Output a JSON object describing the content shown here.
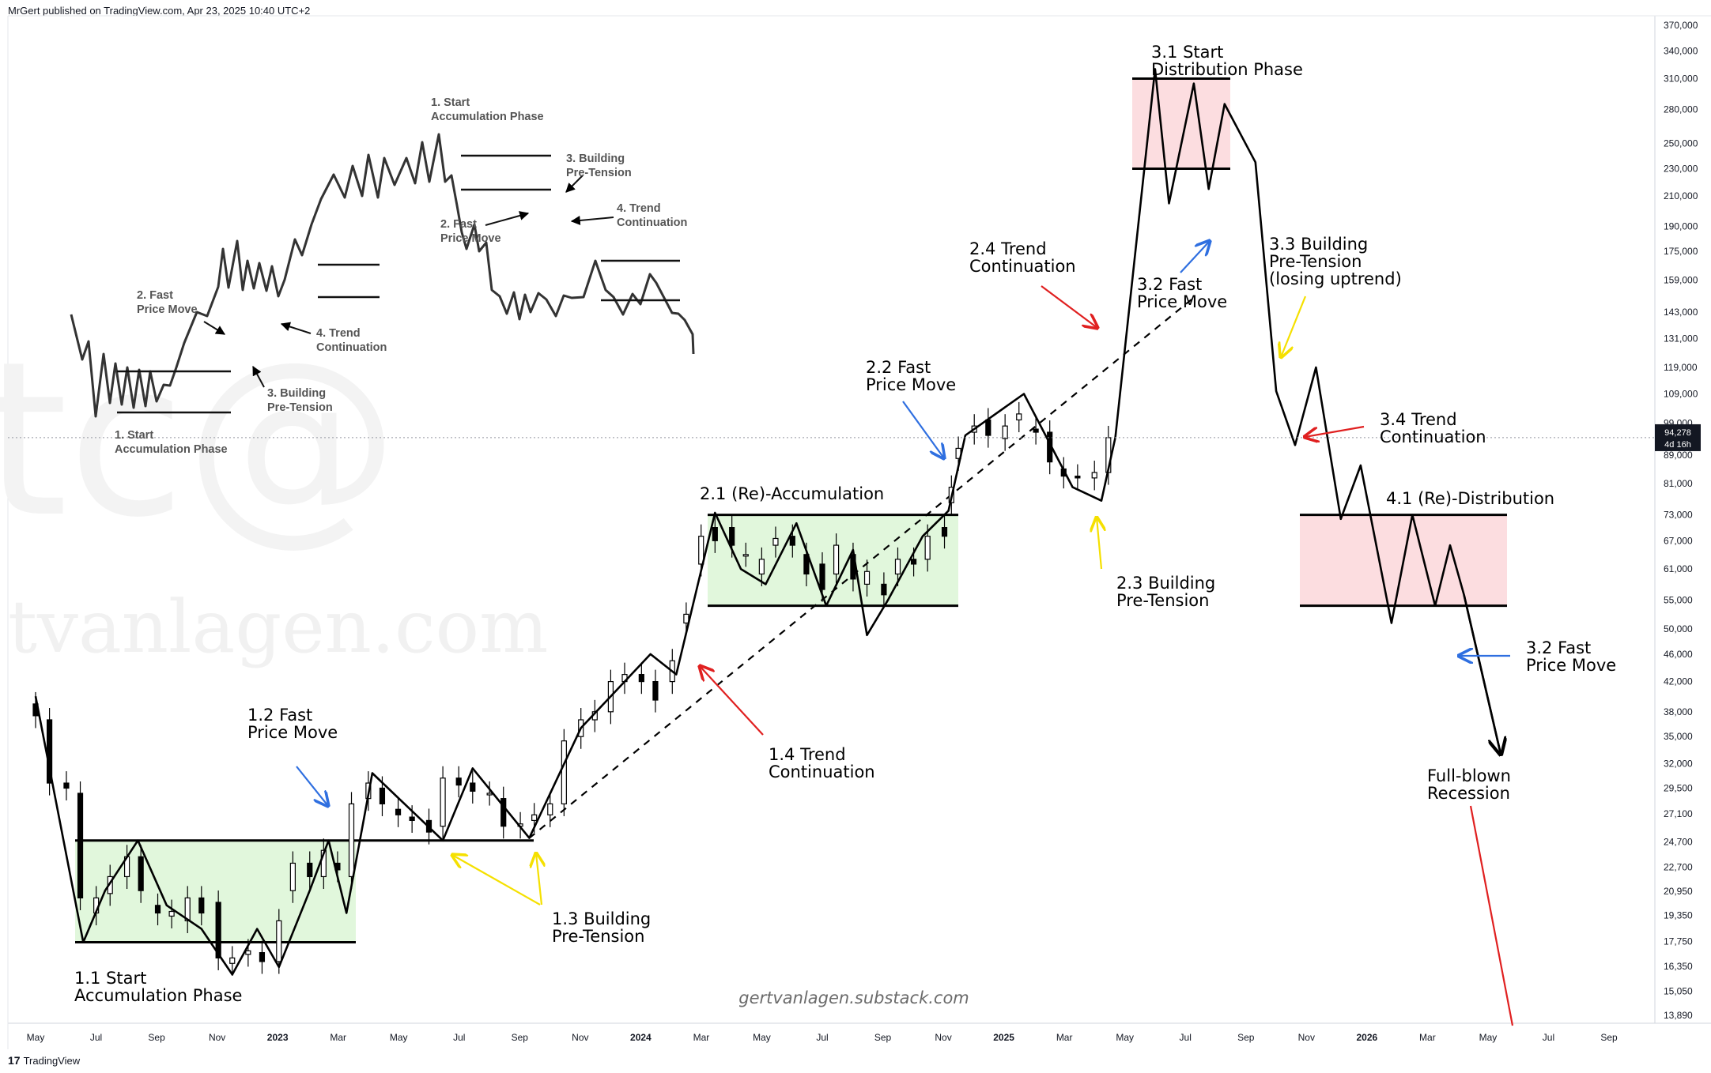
{
  "header": {
    "publisher": "MrGert published on TradingView.com, Apr 23, 2025 10:40 UTC+2"
  },
  "footer": {
    "logo_glyph": "17",
    "brand": "TradingView"
  },
  "watermark": {
    "site": "tvanlagen.com",
    "fragment": "tc@"
  },
  "price_tag": {
    "price": "94,278",
    "countdown": "4d 16h"
  },
  "colors": {
    "accumulation": "#e1f7dc",
    "distribution": "#fcdde0",
    "arrow_red": "#e02020",
    "arrow_blue": "#2f6fe0",
    "arrow_yellow": "#f5e000",
    "ink": "#000000",
    "axis_text": "#131722"
  },
  "chart_data": {
    "type": "line",
    "title": "",
    "xlabel": "",
    "ylabel": "",
    "y_scale": "log",
    "x_range": [
      "2022-05",
      "2026-09"
    ],
    "ylim": [
      13000,
      375000
    ],
    "x_ticks": [
      "May",
      "Jul",
      "Sep",
      "Nov",
      "2023",
      "Mar",
      "May",
      "Jul",
      "Sep",
      "Nov",
      "2024",
      "Mar",
      "May",
      "Jul",
      "Sep",
      "Nov",
      "2025",
      "Mar",
      "May",
      "Jul",
      "Sep",
      "Nov",
      "2026",
      "Mar",
      "May",
      "Jul",
      "Sep"
    ],
    "y_ticks": [
      "370,000",
      "340,000",
      "310,000",
      "280,000",
      "250,000",
      "230,000",
      "210,000",
      "190,000",
      "175,000",
      "159,000",
      "143,000",
      "131,000",
      "119,000",
      "109,000",
      "99,000",
      "89,000",
      "81,000",
      "73,000",
      "67,000",
      "61,000",
      "55,000",
      "50,000",
      "46,000",
      "42,000",
      "38,000",
      "35,000",
      "32,000",
      "29,500",
      "27,100",
      "24,700",
      "22,700",
      "20,950",
      "19,350",
      "17,750",
      "16,350",
      "15,050",
      "13,890"
    ],
    "current_price": 94278,
    "zones": [
      {
        "kind": "accumulation",
        "low": 17700,
        "high": 24800
      },
      {
        "kind": "accumulation",
        "low": 54000,
        "high": 73000
      },
      {
        "kind": "distribution",
        "low": 230000,
        "high": 310000
      },
      {
        "kind": "distribution",
        "low": 54000,
        "high": 73000
      }
    ],
    "annotations": [
      {
        "id": "a11",
        "line1": "1.1 Start",
        "line2": "Accumulation Phase"
      },
      {
        "id": "a12",
        "line1": "1.2 Fast",
        "line2": "Price Move"
      },
      {
        "id": "a13",
        "line1": "1.3 Building",
        "line2": "Pre-Tension"
      },
      {
        "id": "a14",
        "line1": "1.4 Trend",
        "line2": "Continuation"
      },
      {
        "id": "a21",
        "line1": "2.1 (Re)-Accumulation",
        "line2": ""
      },
      {
        "id": "a22",
        "line1": "2.2 Fast",
        "line2": "Price Move"
      },
      {
        "id": "a23",
        "line1": "2.3 Building",
        "line2": "Pre-Tension"
      },
      {
        "id": "a24",
        "line1": "2.4 Trend",
        "line2": "Continuation"
      },
      {
        "id": "a31",
        "line1": "3.1 Start",
        "line2": "Distribution Phase"
      },
      {
        "id": "a32a",
        "line1": "3.2 Fast",
        "line2": "Price Move"
      },
      {
        "id": "a33",
        "line1": "3.3 Building",
        "line2": "Pre-Tension",
        "line3": "(losing uptrend)"
      },
      {
        "id": "a34",
        "line1": "3.4 Trend",
        "line2": "Continuation"
      },
      {
        "id": "a41",
        "line1": "4.1 (Re)-Distribution",
        "line2": ""
      },
      {
        "id": "a32b",
        "line1": "3.2 Fast",
        "line2": "Price Move"
      },
      {
        "id": "a_rec",
        "line1": "Full-blown",
        "line2": "Recession"
      }
    ],
    "credit": "gertvanlagen.substack.com",
    "inset_labels": [
      {
        "id": "i1",
        "line1": "1. Start",
        "line2": "Accumulation Phase"
      },
      {
        "id": "i2",
        "line1": "2. Fast",
        "line2": "Price Move"
      },
      {
        "id": "i3",
        "line1": "3. Building",
        "line2": "Pre-Tension"
      },
      {
        "id": "i4",
        "line1": "4. Trend",
        "line2": "Continuation"
      },
      {
        "id": "j1",
        "line1": "1. Start",
        "line2": "Accumulation Phase"
      },
      {
        "id": "j2",
        "line1": "2. Fast",
        "line2": "Price Move"
      },
      {
        "id": "j3",
        "line1": "3. Building",
        "line2": "Pre-Tension"
      },
      {
        "id": "j4",
        "line1": "4. Trend",
        "line2": "Continuation"
      }
    ],
    "path_main": [
      [
        "2022-05-01",
        40000
      ],
      [
        "2022-06-18",
        17700
      ],
      [
        "2022-07-10",
        21000
      ],
      [
        "2022-08-12",
        24800
      ],
      [
        "2022-09-10",
        20000
      ],
      [
        "2022-10-15",
        18500
      ],
      [
        "2022-11-15",
        15900
      ],
      [
        "2022-12-10",
        18500
      ],
      [
        "2023-01-01",
        16300
      ],
      [
        "2023-02-01",
        21000
      ],
      [
        "2023-02-20",
        24800
      ],
      [
        "2023-03-10",
        19500
      ],
      [
        "2023-04-05",
        31000
      ],
      [
        "2023-06-15",
        24800
      ],
      [
        "2023-07-15",
        31500
      ],
      [
        "2023-09-10",
        25000
      ],
      [
        "2023-11-01",
        36000
      ],
      [
        "2024-01-10",
        46000
      ],
      [
        "2024-02-05",
        43000
      ],
      [
        "2024-03-15",
        73500
      ],
      [
        "2024-04-10",
        61000
      ],
      [
        "2024-05-05",
        58000
      ],
      [
        "2024-06-05",
        71000
      ],
      [
        "2024-07-05",
        54000
      ],
      [
        "2024-08-01",
        65000
      ],
      [
        "2024-08-15",
        49000
      ],
      [
        "2024-09-05",
        55000
      ],
      [
        "2024-10-10",
        68000
      ],
      [
        "2024-11-05",
        74000
      ],
      [
        "2024-11-22",
        95000
      ],
      [
        "2025-01-20",
        109000
      ],
      [
        "2025-03-10",
        80000
      ],
      [
        "2025-04-08",
        76500
      ],
      [
        "2025-04-22",
        94278
      ],
      [
        "2025-06-01",
        320000
      ],
      [
        "2025-06-15",
        205000
      ],
      [
        "2025-07-10",
        305000
      ],
      [
        "2025-07-25",
        215000
      ],
      [
        "2025-08-10",
        285000
      ],
      [
        "2025-09-10",
        235000
      ],
      [
        "2025-10-01",
        110000
      ],
      [
        "2025-10-20",
        92000
      ],
      [
        "2025-11-10",
        119000
      ],
      [
        "2025-12-05",
        72000
      ],
      [
        "2025-12-25",
        86000
      ],
      [
        "2026-01-25",
        51000
      ],
      [
        "2026-02-15",
        73000
      ],
      [
        "2026-03-10",
        54000
      ],
      [
        "2026-03-25",
        66000
      ],
      [
        "2026-04-08",
        56000
      ],
      [
        "2026-05-15",
        33000
      ]
    ],
    "candles": [
      [
        "2022-05-01",
        39000,
        37500
      ],
      [
        "2022-05-15",
        37000,
        30000
      ],
      [
        "2022-06-01",
        30000,
        29500
      ],
      [
        "2022-06-15",
        29000,
        20500
      ],
      [
        "2022-07-01",
        19500,
        20500
      ],
      [
        "2022-07-15",
        20800,
        22000
      ],
      [
        "2022-08-01",
        22000,
        23500
      ],
      [
        "2022-08-15",
        23500,
        21000
      ],
      [
        "2022-09-01",
        20000,
        19500
      ],
      [
        "2022-09-15",
        19300,
        19600
      ],
      [
        "2022-10-01",
        19000,
        20500
      ],
      [
        "2022-10-15",
        20500,
        19500
      ],
      [
        "2022-11-01",
        20200,
        16800
      ],
      [
        "2022-11-15",
        16500,
        16800
      ],
      [
        "2022-12-01",
        17000,
        17200
      ],
      [
        "2022-12-15",
        17100,
        16600
      ],
      [
        "2023-01-01",
        16600,
        19000
      ],
      [
        "2023-01-15",
        21000,
        23000
      ],
      [
        "2023-02-01",
        23000,
        22000
      ],
      [
        "2023-02-15",
        22000,
        24000
      ],
      [
        "2023-03-01",
        23000,
        22500
      ],
      [
        "2023-03-15",
        22000,
        28000
      ],
      [
        "2023-04-01",
        28500,
        30000
      ],
      [
        "2023-04-15",
        29500,
        28000
      ],
      [
        "2023-05-01",
        27500,
        27000
      ],
      [
        "2023-05-15",
        26800,
        26500
      ],
      [
        "2023-06-01",
        26500,
        25500
      ],
      [
        "2023-06-15",
        26000,
        30500
      ],
      [
        "2023-07-01",
        30500,
        29800
      ],
      [
        "2023-07-15",
        30000,
        29200
      ],
      [
        "2023-08-01",
        29000,
        29000
      ],
      [
        "2023-08-15",
        28500,
        26000
      ],
      [
        "2023-09-01",
        26000,
        26200
      ],
      [
        "2023-09-15",
        26500,
        27000
      ],
      [
        "2023-10-01",
        27000,
        28000
      ],
      [
        "2023-10-15",
        28000,
        34500
      ],
      [
        "2023-11-01",
        35000,
        37000
      ],
      [
        "2023-11-15",
        37000,
        38000
      ],
      [
        "2023-12-01",
        38000,
        42000
      ],
      [
        "2023-12-15",
        42000,
        43000
      ],
      [
        "2024-01-01",
        43000,
        42000
      ],
      [
        "2024-01-15",
        42000,
        39500
      ],
      [
        "2024-02-01",
        42000,
        45000
      ],
      [
        "2024-02-15",
        51000,
        52500
      ],
      [
        "2024-03-01",
        62000,
        68000
      ],
      [
        "2024-03-15",
        70000,
        67000
      ],
      [
        "2024-04-01",
        70000,
        66000
      ],
      [
        "2024-04-15",
        64000,
        64000
      ],
      [
        "2024-05-01",
        60000,
        63000
      ],
      [
        "2024-05-15",
        66000,
        67500
      ],
      [
        "2024-06-01",
        68000,
        66000
      ],
      [
        "2024-06-15",
        64000,
        60000
      ],
      [
        "2024-07-01",
        62000,
        57000
      ],
      [
        "2024-07-15",
        60000,
        66000
      ],
      [
        "2024-08-01",
        64000,
        59000
      ],
      [
        "2024-08-15",
        58000,
        60500
      ],
      [
        "2024-09-01",
        58000,
        56000
      ],
      [
        "2024-09-15",
        60000,
        63000
      ],
      [
        "2024-10-01",
        63000,
        62000
      ],
      [
        "2024-10-15",
        63000,
        68000
      ],
      [
        "2024-11-01",
        70000,
        68000
      ],
      [
        "2024-11-08",
        76000,
        80000
      ],
      [
        "2024-11-15",
        88000,
        91000
      ],
      [
        "2024-12-01",
        96000,
        98000
      ],
      [
        "2024-12-15",
        100000,
        95000
      ],
      [
        "2025-01-01",
        94000,
        98000
      ],
      [
        "2025-01-15",
        100000,
        102000
      ],
      [
        "2025-02-01",
        97000,
        96000
      ],
      [
        "2025-02-15",
        96000,
        87000
      ],
      [
        "2025-03-01",
        85000,
        83000
      ],
      [
        "2025-03-15",
        83000,
        82500
      ],
      [
        "2025-04-01",
        82500,
        84000
      ],
      [
        "2025-04-15",
        84000,
        94278
      ]
    ],
    "dashed_trendline": [
      [
        "2023-09-10",
        25000
      ],
      [
        "2025-07-10",
        150000
      ]
    ]
  }
}
